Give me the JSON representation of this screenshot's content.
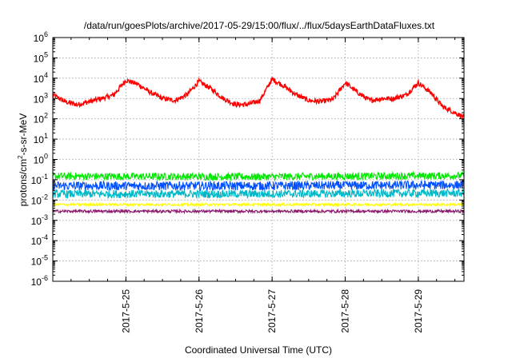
{
  "chart_data": {
    "type": "line",
    "title": "/data/run/goesPlots/archive/2017-05-29/15:00/flux/../flux/5daysEarthDataFluxes.txt",
    "xlabel": "Coordinated Universal Time (UTC)",
    "ylabel": {
      "prefix": "protons/cm",
      "sup": "2",
      "suffix": "-s-sr-MeV"
    },
    "y_scale": "log",
    "ylim": [
      1e-06,
      1000000.0
    ],
    "xlim": [
      "2017-05-24 00:00",
      "2017-05-29 15:00"
    ],
    "grid": true,
    "legend": "none",
    "y_ticks": [
      {
        "value": 1e-06,
        "base": "10",
        "exp": "-6"
      },
      {
        "value": 1e-05,
        "base": "10",
        "exp": "-5"
      },
      {
        "value": 0.0001,
        "base": "10",
        "exp": "-4"
      },
      {
        "value": 0.001,
        "base": "10",
        "exp": "-3"
      },
      {
        "value": 0.01,
        "base": "10",
        "exp": "-2"
      },
      {
        "value": 0.1,
        "base": "10",
        "exp": "-1"
      },
      {
        "value": 1,
        "base": "10",
        "exp": "0"
      },
      {
        "value": 10,
        "base": "10",
        "exp": "1"
      },
      {
        "value": 100,
        "base": "10",
        "exp": "2"
      },
      {
        "value": 1000,
        "base": "10",
        "exp": "3"
      },
      {
        "value": 10000,
        "base": "10",
        "exp": "4"
      },
      {
        "value": 100000,
        "base": "10",
        "exp": "5"
      },
      {
        "value": 1000000,
        "base": "10",
        "exp": "6"
      }
    ],
    "x_ticks": [
      {
        "date": "2017-05-25",
        "label": "2017-5-25"
      },
      {
        "date": "2017-05-26",
        "label": "2017-5-26"
      },
      {
        "date": "2017-05-27",
        "label": "2017-5-27"
      },
      {
        "date": "2017-05-28",
        "label": "2017-5-28"
      },
      {
        "date": "2017-05-29",
        "label": "2017-5-29"
      }
    ],
    "series": [
      {
        "color": "#ff0000",
        "points": [
          [
            "2017-05-24 00:00",
            1500
          ],
          [
            "2017-05-24 04:00",
            700
          ],
          [
            "2017-05-24 08:00",
            500
          ],
          [
            "2017-05-24 12:00",
            700
          ],
          [
            "2017-05-24 16:00",
            1000
          ],
          [
            "2017-05-24 20:00",
            1500
          ],
          [
            "2017-05-25 00:00",
            8000
          ],
          [
            "2017-05-25 04:00",
            5000
          ],
          [
            "2017-05-25 08:00",
            2000
          ],
          [
            "2017-05-25 12:00",
            1000
          ],
          [
            "2017-05-25 16:00",
            800
          ],
          [
            "2017-05-25 20:00",
            1500
          ],
          [
            "2017-05-26 00:00",
            7000
          ],
          [
            "2017-05-26 04:00",
            3000
          ],
          [
            "2017-05-26 08:00",
            1000
          ],
          [
            "2017-05-26 12:00",
            500
          ],
          [
            "2017-05-26 16:00",
            500
          ],
          [
            "2017-05-26 20:00",
            800
          ],
          [
            "2017-05-27 00:00",
            9000
          ],
          [
            "2017-05-27 04:00",
            4000
          ],
          [
            "2017-05-27 08:00",
            1500
          ],
          [
            "2017-05-27 12:00",
            800
          ],
          [
            "2017-05-27 16:00",
            700
          ],
          [
            "2017-05-27 20:00",
            900
          ],
          [
            "2017-05-28 00:00",
            6000
          ],
          [
            "2017-05-28 04:00",
            2000
          ],
          [
            "2017-05-28 08:00",
            800
          ],
          [
            "2017-05-28 12:00",
            1000
          ],
          [
            "2017-05-28 16:00",
            1000
          ],
          [
            "2017-05-28 20:00",
            1500
          ],
          [
            "2017-05-29 00:00",
            6000
          ],
          [
            "2017-05-29 04:00",
            2000
          ],
          [
            "2017-05-29 08:00",
            400
          ],
          [
            "2017-05-29 12:00",
            200
          ],
          [
            "2017-05-29 15:00",
            120
          ]
        ]
      },
      {
        "color": "#00e800",
        "points": [
          [
            "2017-05-24 00:00",
            0.15
          ],
          [
            "2017-05-26 18:00",
            0.14
          ],
          [
            "2017-05-29 15:00",
            0.16
          ]
        ]
      },
      {
        "color": "#0050ff",
        "points": [
          [
            "2017-05-24 00:00",
            0.05
          ],
          [
            "2017-05-26 18:00",
            0.05
          ],
          [
            "2017-05-29 15:00",
            0.055
          ]
        ]
      },
      {
        "color": "#00b8c8",
        "points": [
          [
            "2017-05-24 00:00",
            0.02
          ],
          [
            "2017-05-26 18:00",
            0.02
          ],
          [
            "2017-05-29 15:00",
            0.022
          ]
        ]
      },
      {
        "color": "#ffff00",
        "points": [
          [
            "2017-05-24 00:00",
            0.006
          ],
          [
            "2017-05-26 18:00",
            0.006
          ],
          [
            "2017-05-29 15:00",
            0.006
          ]
        ]
      },
      {
        "color": "#8b1a6b",
        "points": [
          [
            "2017-05-24 00:00",
            0.0028
          ],
          [
            "2017-05-26 18:00",
            0.0028
          ],
          [
            "2017-05-29 15:00",
            0.0028
          ]
        ]
      }
    ]
  }
}
